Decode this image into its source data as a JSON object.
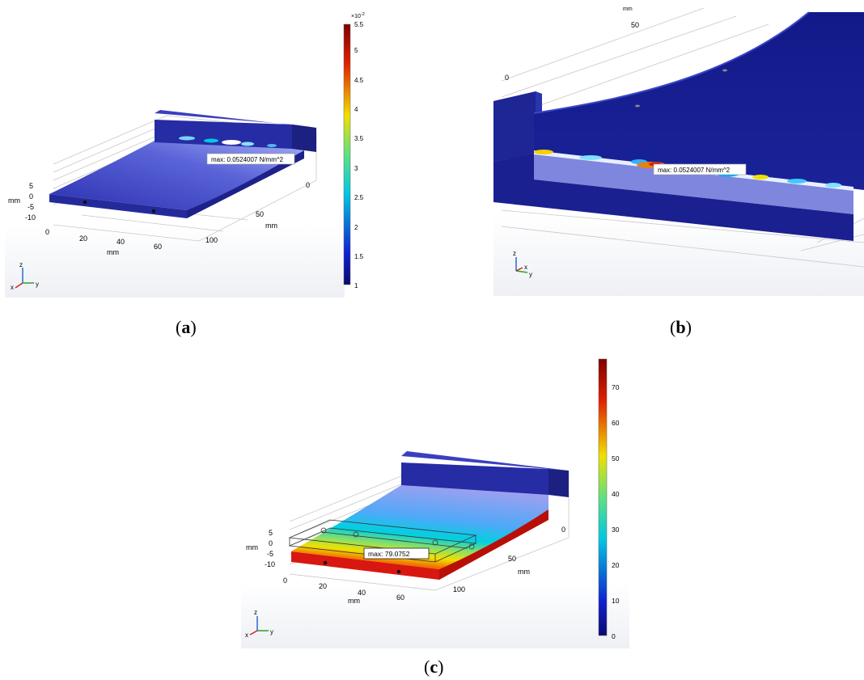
{
  "panels": {
    "a": {
      "label_open": "(",
      "label_letter": "a",
      "label_close": ")",
      "max_annotation": "max: 0.0524007 N/mm^2",
      "colorbar": {
        "exponent": "×10",
        "exponent_power": "-2",
        "ticks": [
          "5.5",
          "5",
          "4.5",
          "4",
          "3.5",
          "3",
          "2.5",
          "2",
          "1.5",
          "1"
        ]
      },
      "axes": {
        "z_ticks": [
          "5",
          "0",
          "-5",
          "-10"
        ],
        "z_unit": "mm",
        "x_ticks": [
          "0",
          "20",
          "40",
          "60",
          "100"
        ],
        "x_unit": "mm",
        "y_ticks": [
          "0",
          "50"
        ],
        "y_unit": "mm"
      },
      "triad": {
        "z": "z",
        "x": "x",
        "y": "y"
      }
    },
    "b": {
      "label_open": "(",
      "label_letter": "b",
      "label_close": ")",
      "max_annotation": "max: 0.0524007 N/mm^2",
      "axes": {
        "ticks": [
          "50",
          "0"
        ],
        "unit": "mm"
      },
      "triad": {
        "z": "z",
        "x": "x",
        "y": "y"
      }
    },
    "c": {
      "label_open": "(",
      "label_letter": "c",
      "label_close": ")",
      "max_annotation": "max: 79.0752",
      "colorbar": {
        "ticks": [
          "70",
          "60",
          "50",
          "40",
          "30",
          "20",
          "10",
          "0"
        ]
      },
      "axes": {
        "z_ticks": [
          "5",
          "0",
          "-5",
          "-10"
        ],
        "z_unit": "mm",
        "x_ticks": [
          "0",
          "20",
          "40",
          "60",
          "100"
        ],
        "x_unit": "mm",
        "y_ticks": [
          "0",
          "50"
        ],
        "y_unit": "mm"
      },
      "triad": {
        "z": "z",
        "x": "x",
        "y": "y"
      }
    }
  },
  "colors": {
    "jet_dark_red": "#7f0000",
    "jet_red": "#e00000",
    "jet_yellow": "#f0e000",
    "jet_cyan": "#00c8e0",
    "jet_blue": "#1020c0",
    "jet_dark_blue": "#0a0a70",
    "model_blue": "#2a2fa8",
    "model_light": "#9aa4f0"
  }
}
